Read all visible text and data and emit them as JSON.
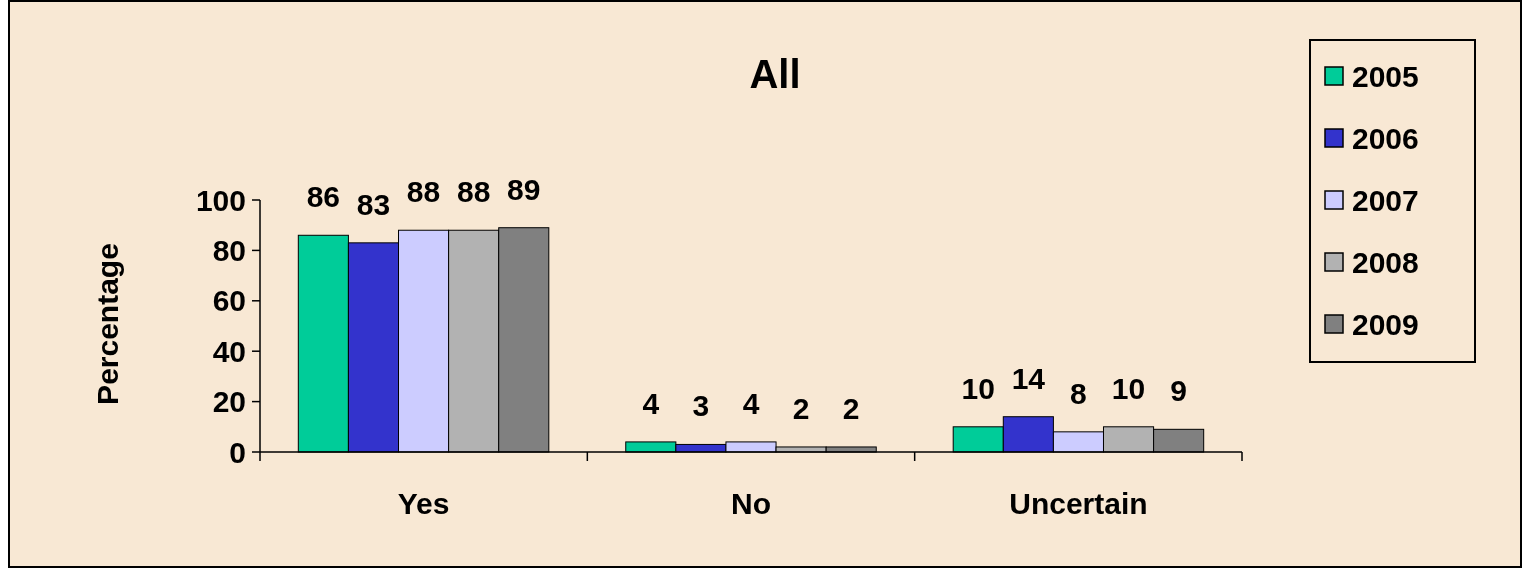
{
  "chart_data": {
    "type": "bar",
    "title": "All",
    "ylabel": "Percentage",
    "categories": [
      "Yes",
      "No",
      "Uncertain"
    ],
    "series": [
      {
        "name": "2005",
        "color": "#00cc99",
        "values": [
          86,
          4,
          10
        ]
      },
      {
        "name": "2006",
        "color": "#3333cc",
        "values": [
          83,
          3,
          14
        ]
      },
      {
        "name": "2007",
        "color": "#ccccff",
        "values": [
          88,
          4,
          8
        ]
      },
      {
        "name": "2008",
        "color": "#b2b2b2",
        "values": [
          88,
          2,
          10
        ]
      },
      {
        "name": "2009",
        "color": "#808080",
        "values": [
          89,
          2,
          9
        ]
      }
    ],
    "ylim": [
      0,
      100
    ],
    "yticks": [
      0,
      20,
      40,
      60,
      80,
      100
    ],
    "grid": false,
    "legend": "top right",
    "data_labels": true
  }
}
